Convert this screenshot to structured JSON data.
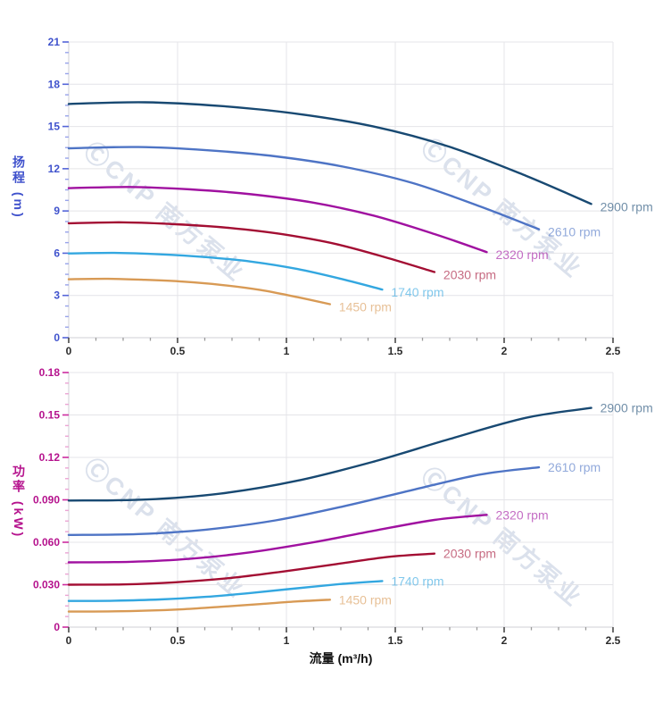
{
  "watermark": {
    "text": "ⒸCNP 南方泵业",
    "color": "#c2cddf"
  },
  "styles": {
    "background": "#ffffff",
    "grid_color": "#e4e4e8",
    "axis_line_color": "#cfcfd4",
    "x_tick_color": "#4a4a4a",
    "x_minor_tick_color": "#9a9a9a",
    "x_label_color": "#2b2b2b",
    "flow_title_color": "#111111"
  },
  "chart_data": [
    {
      "type": "line",
      "title": "",
      "xlabel": "",
      "ylabel": "扬程 (m)",
      "xlim": [
        0,
        2.5
      ],
      "ylim": [
        0,
        21
      ],
      "grid": true,
      "legend_position": "end-of-line-labels",
      "x_ticks": {
        "values": [
          0,
          0.5,
          1,
          1.5,
          2,
          2.5
        ],
        "labels": [
          "0",
          "0.5",
          "1",
          "1.5",
          "2",
          "2.5"
        ]
      },
      "y_ticks": {
        "values": [
          0,
          3,
          6,
          9,
          12,
          15,
          18,
          21
        ],
        "labels": [
          "0",
          "3",
          "6",
          "9",
          "12",
          "15",
          "18",
          "21"
        ]
      },
      "axis_color": "#4053cd",
      "tick_color": "#5565d8",
      "minor_tick_color": "#98a3ea",
      "series": [
        {
          "name": "2900 rpm",
          "label": "2900 rpm",
          "color": "#184972",
          "points": [
            [
              0,
              16.6
            ],
            [
              0.35,
              16.72
            ],
            [
              0.7,
              16.45
            ],
            [
              1.05,
              15.9
            ],
            [
              1.4,
              15.0
            ],
            [
              1.75,
              13.55
            ],
            [
              2.1,
              11.5
            ],
            [
              2.4,
              9.5
            ]
          ]
        },
        {
          "name": "2610 rpm",
          "label": "2610 rpm",
          "color": "#4e74c5",
          "points": [
            [
              0,
              13.45
            ],
            [
              0.32,
              13.54
            ],
            [
              0.63,
              13.32
            ],
            [
              0.95,
              12.88
            ],
            [
              1.26,
              12.15
            ],
            [
              1.58,
              10.98
            ],
            [
              1.89,
              9.32
            ],
            [
              2.16,
              7.7
            ]
          ]
        },
        {
          "name": "2320 rpm",
          "label": "2320 rpm",
          "color": "#a011a0",
          "points": [
            [
              0,
              10.62
            ],
            [
              0.28,
              10.7
            ],
            [
              0.56,
              10.53
            ],
            [
              0.84,
              10.18
            ],
            [
              1.12,
              9.6
            ],
            [
              1.4,
              8.67
            ],
            [
              1.68,
              7.36
            ],
            [
              1.92,
              6.08
            ]
          ]
        },
        {
          "name": "2030 rpm",
          "label": "2030 rpm",
          "color": "#a30e33",
          "points": [
            [
              0,
              8.13
            ],
            [
              0.25,
              8.19
            ],
            [
              0.49,
              8.06
            ],
            [
              0.74,
              7.79
            ],
            [
              0.98,
              7.35
            ],
            [
              1.23,
              6.64
            ],
            [
              1.47,
              5.64
            ],
            [
              1.68,
              4.66
            ]
          ]
        },
        {
          "name": "1740 rpm",
          "label": "1740 rpm",
          "color": "#33a7e0",
          "points": [
            [
              0,
              5.98
            ],
            [
              0.21,
              6.02
            ],
            [
              0.42,
              5.92
            ],
            [
              0.63,
              5.72
            ],
            [
              0.84,
              5.4
            ],
            [
              1.05,
              4.88
            ],
            [
              1.26,
              4.14
            ],
            [
              1.44,
              3.42
            ]
          ]
        },
        {
          "name": "1450 rpm",
          "label": "1450 rpm",
          "color": "#d89a55",
          "points": [
            [
              0,
              4.15
            ],
            [
              0.18,
              4.18
            ],
            [
              0.35,
              4.11
            ],
            [
              0.53,
              3.98
            ],
            [
              0.7,
              3.75
            ],
            [
              0.88,
              3.39
            ],
            [
              1.05,
              2.88
            ],
            [
              1.2,
              2.38
            ]
          ]
        }
      ]
    },
    {
      "type": "line",
      "title": "",
      "xlabel": "流量 (m³/h)",
      "ylabel": "功率 (kW)",
      "xlim": [
        0,
        2.5
      ],
      "ylim": [
        0,
        0.18
      ],
      "grid": true,
      "legend_position": "end-of-line-labels",
      "x_ticks": {
        "values": [
          0,
          0.5,
          1,
          1.5,
          2,
          2.5
        ],
        "labels": [
          "0",
          "0.5",
          "1",
          "1.5",
          "2",
          "2.5"
        ]
      },
      "y_ticks": {
        "values": [
          0,
          0.03,
          0.06,
          0.09,
          0.12,
          0.15,
          0.18
        ],
        "labels": [
          "0",
          "0.030",
          "0.060",
          "0.090",
          "0.12",
          "0.15",
          "0.18"
        ]
      },
      "axis_color": "#b5128d",
      "tick_color": "#cc2da0",
      "minor_tick_color": "#eba5d4",
      "series": [
        {
          "name": "2900 rpm",
          "label": "2900 rpm",
          "color": "#184972",
          "points": [
            [
              0,
              0.0895
            ],
            [
              0.35,
              0.0902
            ],
            [
              0.7,
              0.0945
            ],
            [
              1.05,
              0.1035
            ],
            [
              1.4,
              0.117
            ],
            [
              1.75,
              0.133
            ],
            [
              2.1,
              0.148
            ],
            [
              2.4,
              0.155
            ]
          ]
        },
        {
          "name": "2610 rpm",
          "label": "2610 rpm",
          "color": "#4e74c5",
          "points": [
            [
              0,
              0.0652
            ],
            [
              0.32,
              0.0658
            ],
            [
              0.63,
              0.0689
            ],
            [
              0.95,
              0.0755
            ],
            [
              1.26,
              0.0853
            ],
            [
              1.58,
              0.097
            ],
            [
              1.89,
              0.1079
            ],
            [
              2.16,
              0.113
            ]
          ]
        },
        {
          "name": "2320 rpm",
          "label": "2320 rpm",
          "color": "#a011a0",
          "points": [
            [
              0,
              0.0458
            ],
            [
              0.28,
              0.0462
            ],
            [
              0.56,
              0.0484
            ],
            [
              0.84,
              0.053
            ],
            [
              1.12,
              0.0599
            ],
            [
              1.4,
              0.0681
            ],
            [
              1.68,
              0.0758
            ],
            [
              1.92,
              0.0794
            ]
          ]
        },
        {
          "name": "2030 rpm",
          "label": "2030 rpm",
          "color": "#a30e33",
          "points": [
            [
              0,
              0.03
            ],
            [
              0.25,
              0.0302
            ],
            [
              0.49,
              0.0317
            ],
            [
              0.74,
              0.0347
            ],
            [
              0.98,
              0.0392
            ],
            [
              1.23,
              0.0446
            ],
            [
              1.47,
              0.0497
            ],
            [
              1.68,
              0.052
            ]
          ]
        },
        {
          "name": "1740 rpm",
          "label": "1740 rpm",
          "color": "#33a7e0",
          "points": [
            [
              0,
              0.0185
            ],
            [
              0.21,
              0.0187
            ],
            [
              0.42,
              0.0196
            ],
            [
              0.63,
              0.0214
            ],
            [
              0.84,
              0.0242
            ],
            [
              1.05,
              0.0275
            ],
            [
              1.26,
              0.0306
            ],
            [
              1.44,
              0.0326
            ]
          ]
        },
        {
          "name": "1450 rpm",
          "label": "1450 rpm",
          "color": "#d89a55",
          "points": [
            [
              0,
              0.011
            ],
            [
              0.18,
              0.0111
            ],
            [
              0.35,
              0.0116
            ],
            [
              0.53,
              0.0127
            ],
            [
              0.7,
              0.0144
            ],
            [
              0.88,
              0.0163
            ],
            [
              1.05,
              0.0182
            ],
            [
              1.2,
              0.0194
            ]
          ]
        }
      ]
    }
  ]
}
